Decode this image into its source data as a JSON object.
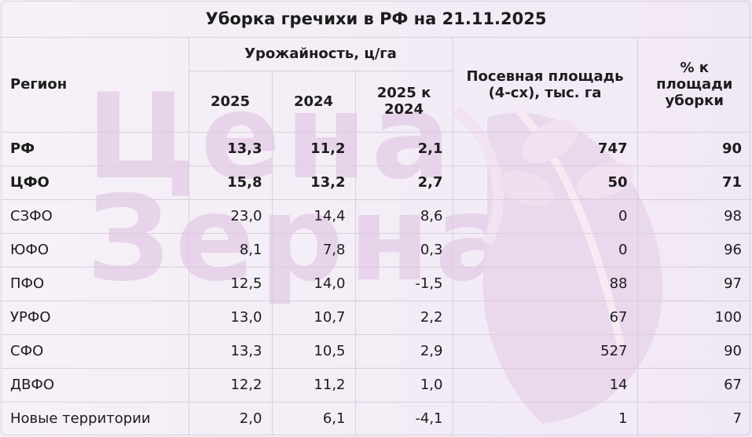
{
  "title": "Уборка гречихи в РФ на 21.11.2025",
  "watermark": {
    "line1": "Цена",
    "line2": "Зерна"
  },
  "header": {
    "region": "Регион",
    "yield_group": "Урожайность, ц/га",
    "y2025": "2025",
    "y2024": "2024",
    "diff": "2025 к 2024",
    "area": "Посевная площадь (4-сх), тыс. га",
    "pct": "% к площади уборки"
  },
  "rows": [
    {
      "region": "РФ",
      "y2025": "13,3",
      "y2024": "11,2",
      "diff": "2,1",
      "area": "747",
      "pct": "90"
    },
    {
      "region": "ЦФО",
      "y2025": "15,8",
      "y2024": "13,2",
      "diff": "2,7",
      "area": "50",
      "pct": "71"
    },
    {
      "region": "СЗФО",
      "y2025": "23,0",
      "y2024": "14,4",
      "diff": "8,6",
      "area": "0",
      "pct": "98"
    },
    {
      "region": "ЮФО",
      "y2025": "8,1",
      "y2024": "7,8",
      "diff": "0,3",
      "area": "0",
      "pct": "96"
    },
    {
      "region": "ПФО",
      "y2025": "12,5",
      "y2024": "14,0",
      "diff": "-1,5",
      "area": "88",
      "pct": "97"
    },
    {
      "region": "УРФО",
      "y2025": "13,0",
      "y2024": "10,7",
      "diff": "2,2",
      "area": "67",
      "pct": "100"
    },
    {
      "region": "СФО",
      "y2025": "13,3",
      "y2024": "10,5",
      "diff": "2,9",
      "area": "527",
      "pct": "90"
    },
    {
      "region": "ДВФО",
      "y2025": "12,2",
      "y2024": "11,2",
      "diff": "1,0",
      "area": "14",
      "pct": "67"
    },
    {
      "region": "Новые территории",
      "y2025": "2,0",
      "y2024": "6,1",
      "diff": "-4,1",
      "area": "1",
      "pct": "7"
    }
  ],
  "colors": {
    "background": "#f4eef6",
    "border": "#d9cfdc",
    "watermark": "#e7d3ea"
  }
}
